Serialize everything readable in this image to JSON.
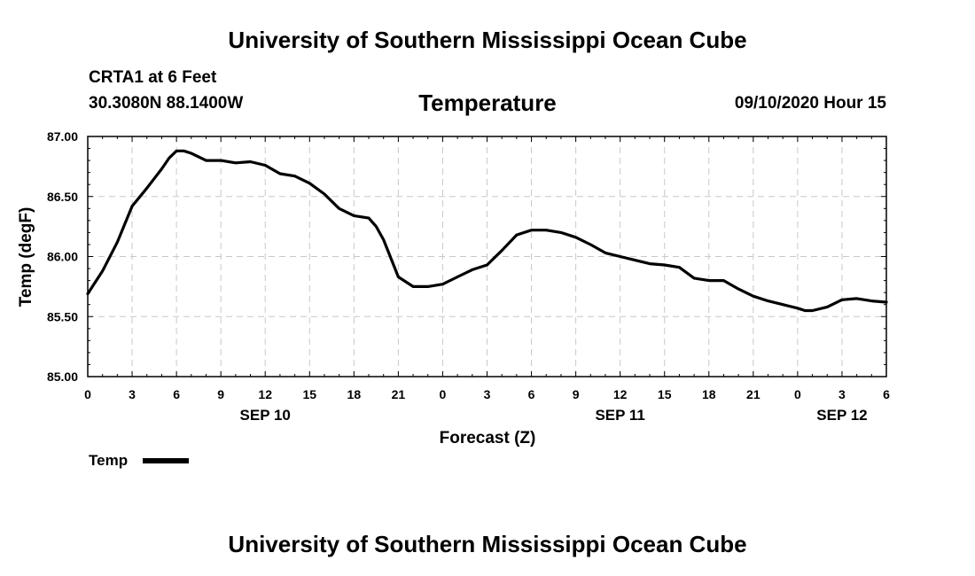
{
  "header": {
    "title": "University of Southern Mississippi Ocean Cube",
    "station": "CRTA1 at 6 Feet",
    "coords": "30.3080N 88.1400W",
    "chart_title": "Temperature",
    "datetime": "09/10/2020 Hour 15"
  },
  "footer": {
    "title": "University of Southern Mississippi Ocean Cube"
  },
  "legend": {
    "label": "Temp"
  },
  "colors": {
    "line": "#000000",
    "grid": "#c8c8c8",
    "background": "#ffffff"
  },
  "chart_data": {
    "type": "line",
    "title": "Temperature",
    "xlabel": "Forecast (Z)",
    "ylabel": "Temp (degF)",
    "xlim": [
      0,
      54
    ],
    "ylim": [
      85.0,
      87.0
    ],
    "x_ticks": [
      0,
      3,
      6,
      9,
      12,
      15,
      18,
      21,
      24,
      27,
      30,
      33,
      36,
      39,
      42,
      45,
      48,
      51,
      54
    ],
    "x_tick_labels": [
      "0",
      "3",
      "6",
      "9",
      "12",
      "15",
      "18",
      "21",
      "0",
      "3",
      "6",
      "9",
      "12",
      "15",
      "18",
      "21",
      "0",
      "3",
      "6"
    ],
    "y_ticks": [
      85.0,
      85.5,
      86.0,
      86.5,
      87.0
    ],
    "y_tick_labels": [
      "85.00",
      "85.50",
      "86.00",
      "86.50",
      "87.00"
    ],
    "date_labels": [
      {
        "label": "SEP 10",
        "x": 12
      },
      {
        "label": "SEP 11",
        "x": 36
      },
      {
        "label": "SEP 12",
        "x": 51
      }
    ],
    "grid": true,
    "series": [
      {
        "name": "Temp",
        "x": [
          0,
          1,
          2,
          3,
          4,
          5,
          5.5,
          6,
          6.5,
          7,
          8,
          9,
          10,
          11,
          12,
          13,
          14,
          15,
          16,
          17,
          18,
          19,
          19.5,
          20,
          21,
          22,
          23,
          24,
          25,
          26,
          27,
          28,
          29,
          30,
          31,
          32,
          33,
          34,
          35,
          36,
          37,
          38,
          39,
          40,
          41,
          42,
          43,
          44,
          45,
          46,
          47,
          48,
          48.5,
          49,
          50,
          51,
          52,
          53,
          54
        ],
        "values": [
          85.69,
          85.88,
          86.12,
          86.42,
          86.57,
          86.73,
          86.82,
          86.88,
          86.88,
          86.86,
          86.8,
          86.8,
          86.78,
          86.79,
          86.76,
          86.69,
          86.67,
          86.61,
          86.52,
          86.4,
          86.34,
          86.32,
          86.25,
          86.14,
          85.83,
          85.75,
          85.75,
          85.77,
          85.83,
          85.89,
          85.93,
          86.05,
          86.18,
          86.22,
          86.22,
          86.2,
          86.16,
          86.1,
          86.03,
          86.0,
          85.97,
          85.94,
          85.93,
          85.91,
          85.82,
          85.8,
          85.8,
          85.73,
          85.67,
          85.63,
          85.6,
          85.57,
          85.55,
          85.55,
          85.58,
          85.64,
          85.65,
          85.63,
          85.62
        ]
      }
    ]
  }
}
